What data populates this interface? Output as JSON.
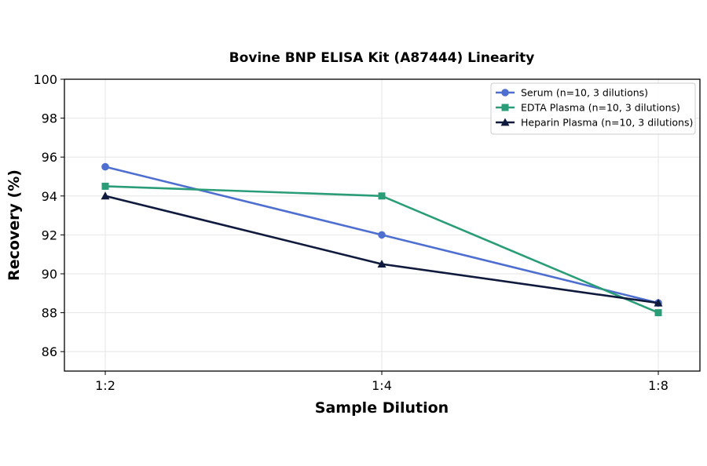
{
  "chart_data": {
    "type": "line",
    "title": "Bovine BNP ELISA Kit (A87444) Linearity",
    "xlabel": "Sample Dilution",
    "ylabel": "Recovery (%)",
    "categories": [
      "1:2",
      "1:4",
      "1:8"
    ],
    "ylim": [
      85,
      100
    ],
    "yticks": [
      86,
      88,
      90,
      92,
      94,
      96,
      98,
      100
    ],
    "grid": true,
    "legend_position": "top-right",
    "series": [
      {
        "name": "Serum (n=10, 3 dilutions)",
        "values": [
          95.5,
          92.0,
          88.5
        ],
        "color": "#4f6fd0",
        "marker": "circle"
      },
      {
        "name": "EDTA Plasma (n=10, 3 dilutions)",
        "values": [
          94.5,
          94.0,
          88.0
        ],
        "color": "#2a9d78",
        "marker": "square"
      },
      {
        "name": "Heparin Plasma (n=10, 3 dilutions)",
        "values": [
          94.0,
          90.5,
          88.5
        ],
        "color": "#0f1a3d",
        "marker": "triangle"
      }
    ]
  }
}
